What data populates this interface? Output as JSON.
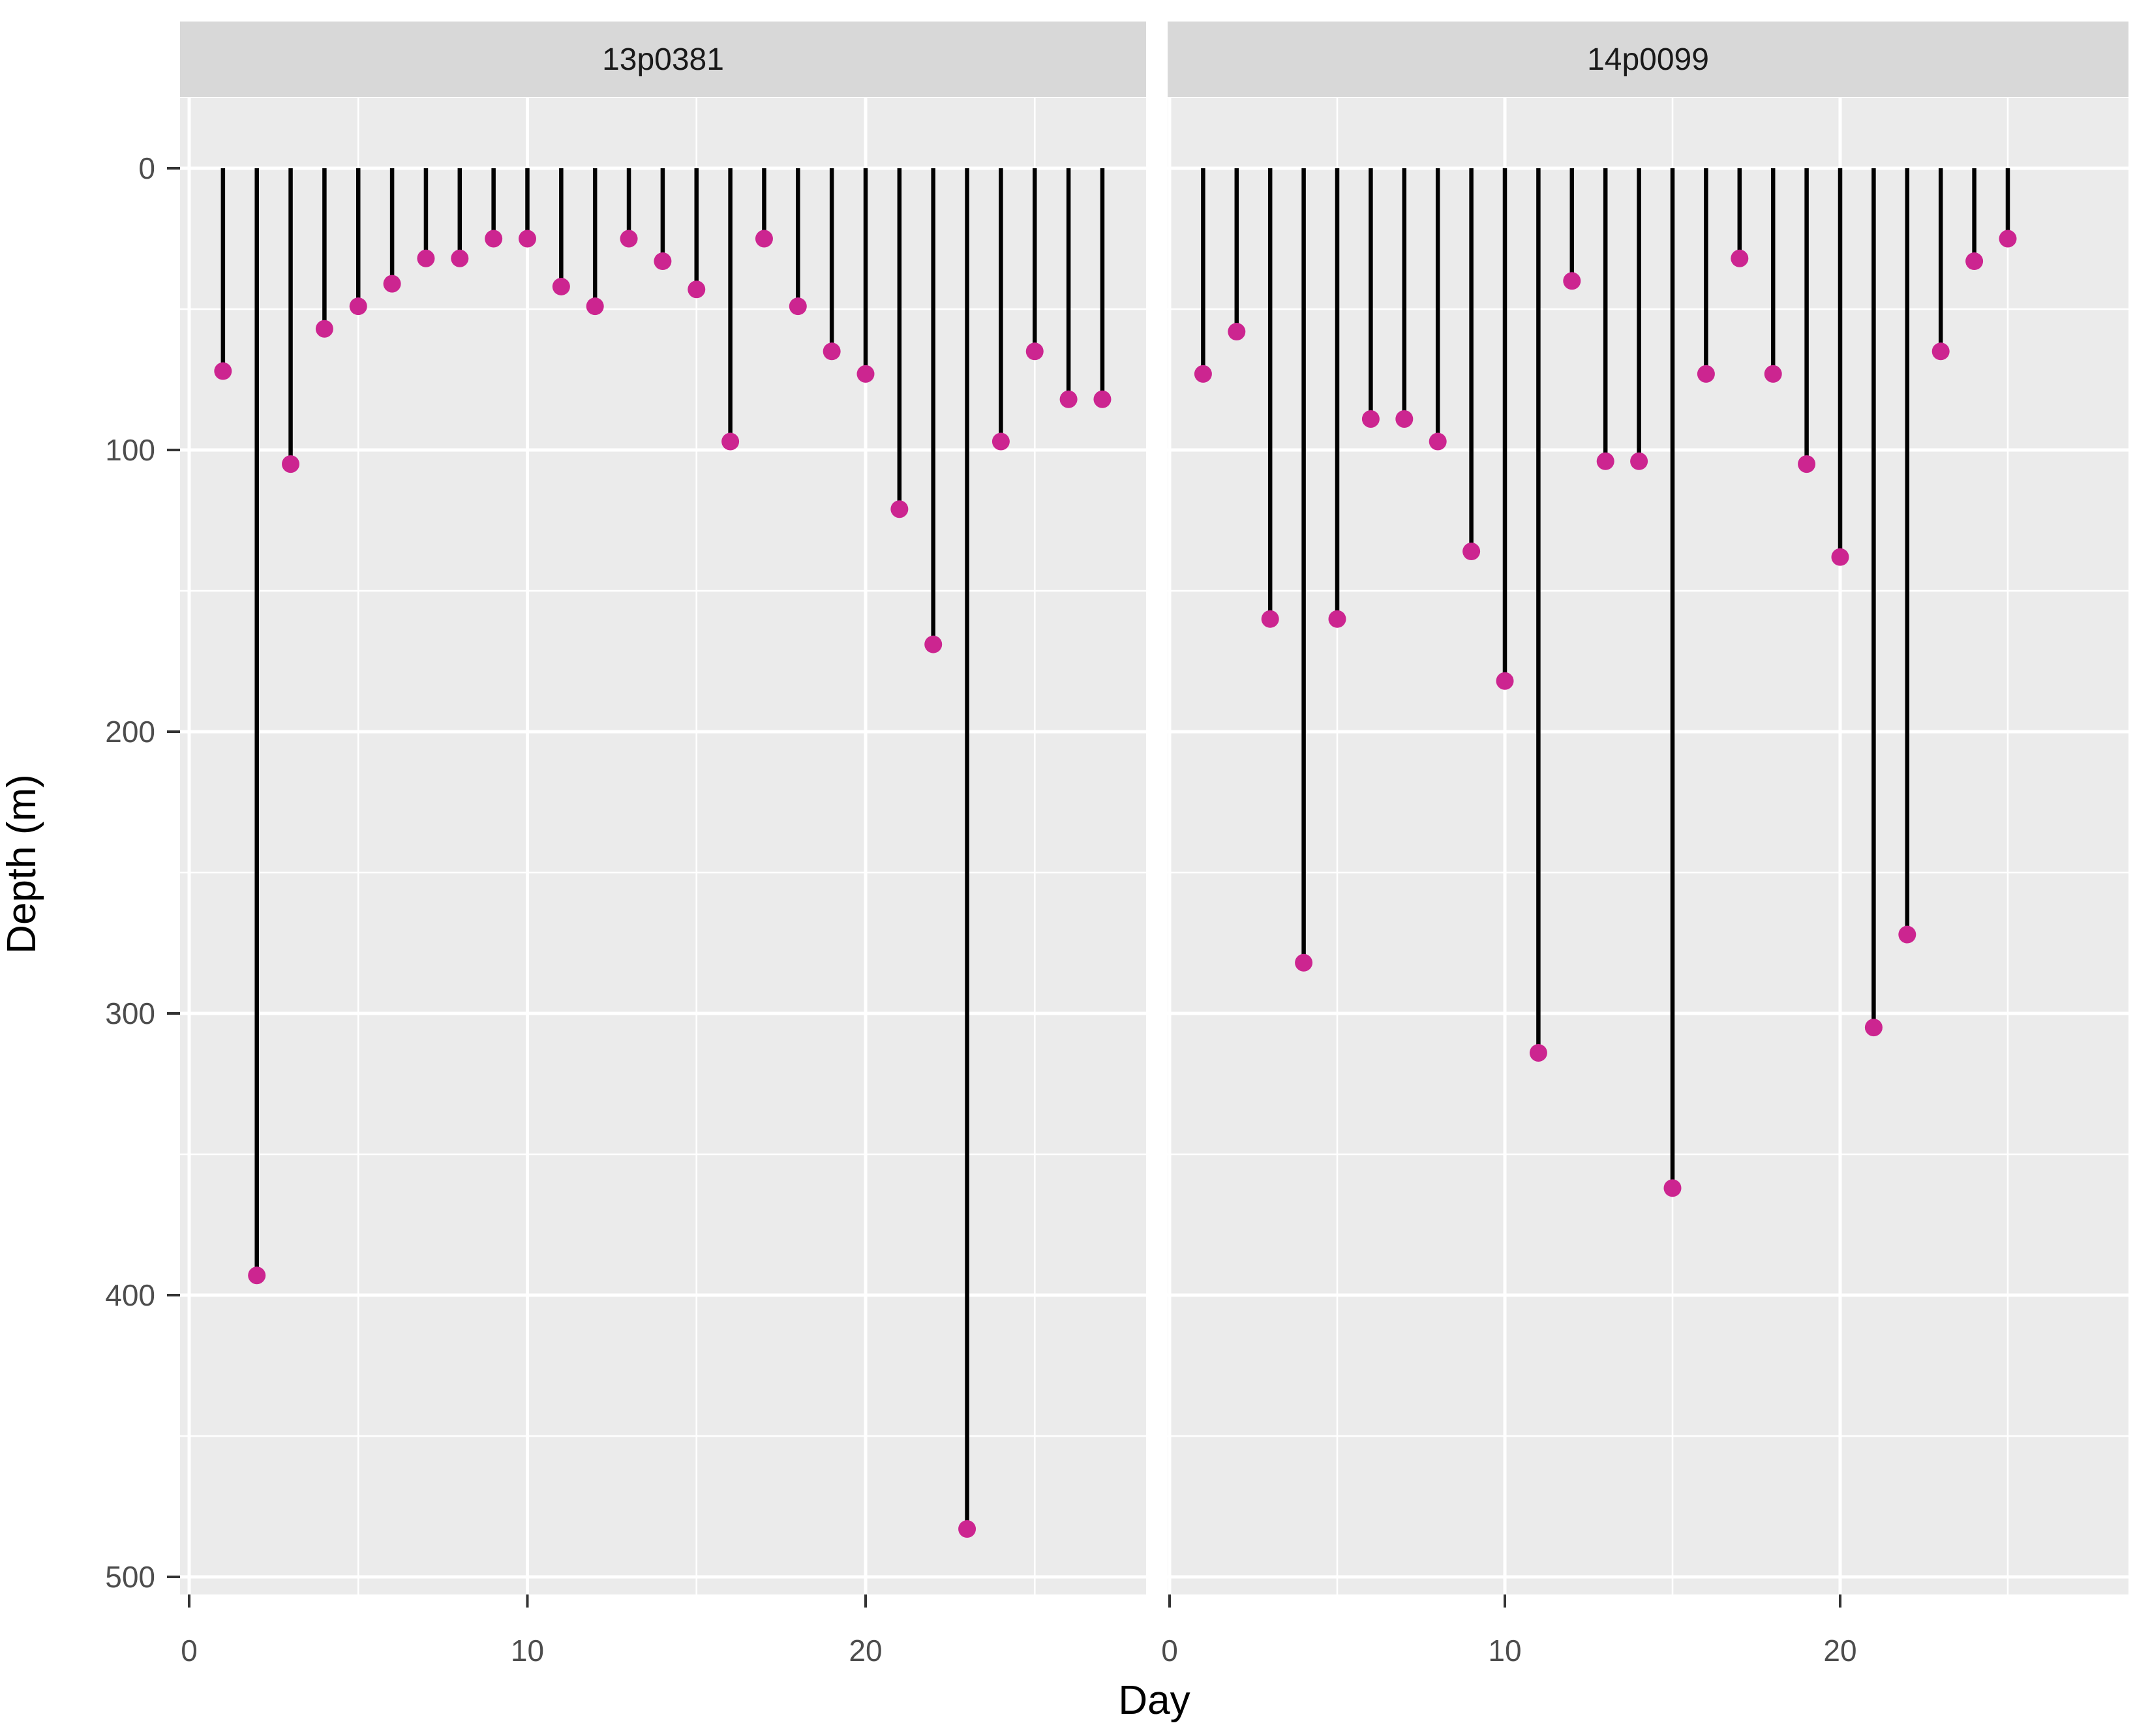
{
  "chart_data": {
    "type": "scatter",
    "style": "lollipop: vertical segment from surface (0 m) to depth with point at end (ggplot2 faceted)",
    "xlabel": "Day",
    "ylabel": "Depth (m)",
    "x_axis": {
      "ticks": [
        0,
        10,
        20
      ],
      "minor_ticks": [
        5,
        15,
        25
      ],
      "range": [
        -0.3,
        28.3
      ]
    },
    "y_axis": {
      "ticks": [
        0,
        100,
        200,
        300,
        400,
        500
      ],
      "minor_ticks": [
        50,
        150,
        250,
        350,
        450
      ],
      "range": [
        -25,
        505
      ],
      "reversed": true,
      "grid": true
    },
    "legend_position": "none",
    "colors": {
      "point": "#CC2590",
      "segment": "#000000",
      "panel_background": "#EBEBEB",
      "strip_background": "#D8D8D8",
      "strip_text": "#1A1A1A",
      "gridline": "#FFFFFF",
      "axis_text": "#4D4D4D",
      "axis_tick_mark": "#333333",
      "axis_title": "#000000"
    },
    "series": [
      {
        "facet": "13p0381",
        "points": [
          [
            1,
            72
          ],
          [
            2,
            393
          ],
          [
            3,
            105
          ],
          [
            4,
            57
          ],
          [
            5,
            49
          ],
          [
            6,
            41
          ],
          [
            7,
            32
          ],
          [
            8,
            32
          ],
          [
            9,
            25
          ],
          [
            10,
            25
          ],
          [
            11,
            42
          ],
          [
            12,
            49
          ],
          [
            13,
            25
          ],
          [
            14,
            33
          ],
          [
            15,
            43
          ],
          [
            16,
            97
          ],
          [
            17,
            25
          ],
          [
            18,
            49
          ],
          [
            19,
            65
          ],
          [
            20,
            73
          ],
          [
            21,
            121
          ],
          [
            22,
            169
          ],
          [
            23,
            483
          ],
          [
            24,
            97
          ],
          [
            25,
            65
          ],
          [
            26,
            82
          ],
          [
            27,
            82
          ]
        ]
      },
      {
        "facet": "14p0099",
        "points": [
          [
            1,
            73
          ],
          [
            2,
            58
          ],
          [
            3,
            160
          ],
          [
            4,
            282
          ],
          [
            5,
            160
          ],
          [
            6,
            89
          ],
          [
            7,
            89
          ],
          [
            8,
            97
          ],
          [
            9,
            136
          ],
          [
            10,
            182
          ],
          [
            11,
            314
          ],
          [
            12,
            40
          ],
          [
            13,
            104
          ],
          [
            14,
            104
          ],
          [
            15,
            362
          ],
          [
            16,
            73
          ],
          [
            17,
            32
          ],
          [
            18,
            73
          ],
          [
            19,
            105
          ],
          [
            20,
            138
          ],
          [
            21,
            305
          ],
          [
            22,
            272
          ],
          [
            23,
            65
          ],
          [
            24,
            33
          ],
          [
            25,
            25
          ]
        ]
      }
    ]
  }
}
